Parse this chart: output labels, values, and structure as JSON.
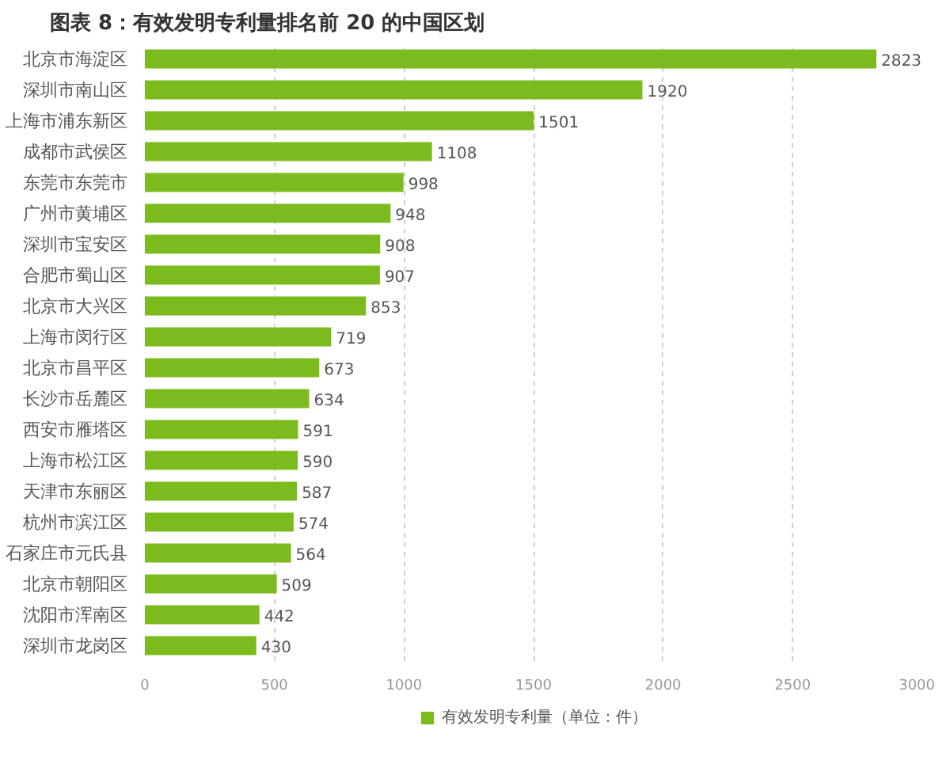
{
  "chart_data": {
    "type": "bar",
    "orientation": "horizontal",
    "title": "图表 8：有效发明专利量排名前 20 的中国区划",
    "categories": [
      "北京市海淀区",
      "深圳市南山区",
      "上海市浦东新区",
      "成都市武侯区",
      "东莞市东莞市",
      "广州市黄埔区",
      "深圳市宝安区",
      "合肥市蜀山区",
      "北京市大兴区",
      "上海市闵行区",
      "北京市昌平区",
      "长沙市岳麓区",
      "西安市雁塔区",
      "上海市松江区",
      "天津市东丽区",
      "杭州市滨江区",
      "石家庄市元氏县",
      "北京市朝阳区",
      "沈阳市浑南区",
      "深圳市龙岗区"
    ],
    "series": [
      {
        "name": "有效发明专利量（单位：件）",
        "color": "#7cbb1e",
        "values": [
          2823,
          1920,
          1501,
          1108,
          998,
          948,
          908,
          907,
          853,
          719,
          673,
          634,
          591,
          590,
          587,
          574,
          564,
          509,
          442,
          430
        ]
      }
    ],
    "xlim": [
      0,
      3000
    ],
    "xticks": [
      0,
      500,
      1000,
      1500,
      2000,
      2500,
      3000
    ],
    "data_labels": true,
    "grid": "x",
    "legend": "bottom"
  }
}
